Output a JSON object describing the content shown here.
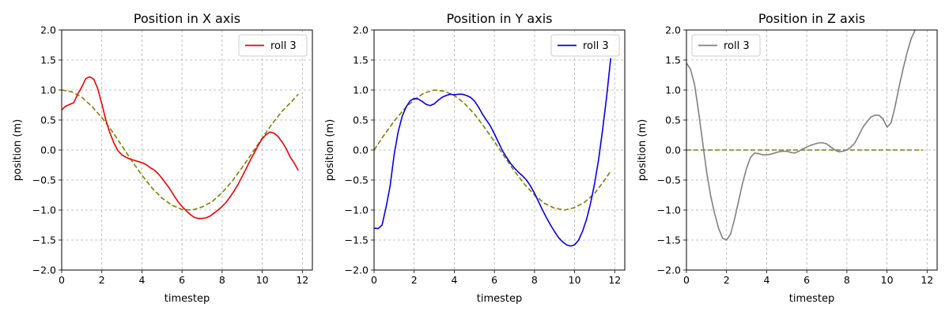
{
  "chart_data": [
    {
      "type": "line",
      "title": "Position in X axis",
      "xlabel": "timestep",
      "ylabel": "position (m)",
      "xlim": [
        0,
        12.5
      ],
      "ylim": [
        -2,
        2
      ],
      "xticks": [
        0,
        2,
        4,
        6,
        8,
        10,
        12
      ],
      "yticks": [
        -2.0,
        -1.5,
        -1.0,
        -0.5,
        0.0,
        0.5,
        1.0,
        1.5,
        2.0
      ],
      "grid": true,
      "legend_position": "upper right",
      "series": [
        {
          "name": "roll 3",
          "color": "#ee0000",
          "style": "solid",
          "x": [
            0,
            0.2,
            0.4,
            0.6,
            0.8,
            1.0,
            1.2,
            1.4,
            1.6,
            1.8,
            2.0,
            2.2,
            2.4,
            2.6,
            2.8,
            3.0,
            3.2,
            3.4,
            3.6,
            3.8,
            4.0,
            4.2,
            4.4,
            4.6,
            4.8,
            5.0,
            5.2,
            5.4,
            5.6,
            5.8,
            6.0,
            6.2,
            6.4,
            6.6,
            6.8,
            7.0,
            7.2,
            7.4,
            7.6,
            7.8,
            8.0,
            8.2,
            8.4,
            8.6,
            8.8,
            9.0,
            9.2,
            9.4,
            9.6,
            9.8,
            10.0,
            10.2,
            10.4,
            10.6,
            10.8,
            11.0,
            11.2,
            11.4,
            11.6,
            11.8
          ],
          "y": [
            0.67,
            0.73,
            0.76,
            0.79,
            0.93,
            1.05,
            1.19,
            1.22,
            1.18,
            1.02,
            0.77,
            0.5,
            0.29,
            0.12,
            -0.01,
            -0.08,
            -0.12,
            -0.15,
            -0.17,
            -0.19,
            -0.21,
            -0.24,
            -0.29,
            -0.33,
            -0.39,
            -0.47,
            -0.56,
            -0.65,
            -0.76,
            -0.86,
            -0.94,
            -1.01,
            -1.07,
            -1.12,
            -1.14,
            -1.14,
            -1.13,
            -1.1,
            -1.05,
            -1.0,
            -0.94,
            -0.87,
            -0.78,
            -0.68,
            -0.57,
            -0.44,
            -0.31,
            -0.17,
            -0.05,
            0.08,
            0.19,
            0.26,
            0.3,
            0.28,
            0.22,
            0.13,
            0.02,
            -0.12,
            -0.22,
            -0.34
          ]
        },
        {
          "name": "",
          "color": "#808000",
          "style": "dashed",
          "x": [
            0,
            0.5,
            1.0,
            1.5,
            2.0,
            2.5,
            3.0,
            3.5,
            4.0,
            4.5,
            5.0,
            5.5,
            6.0,
            6.5,
            7.0,
            7.5,
            8.0,
            8.5,
            9.0,
            9.5,
            10.0,
            10.5,
            11.0,
            11.5,
            11.8
          ],
          "y": [
            1.0,
            0.97,
            0.88,
            0.73,
            0.54,
            0.32,
            0.07,
            -0.18,
            -0.42,
            -0.63,
            -0.8,
            -0.92,
            -0.99,
            -1.0,
            -0.95,
            -0.86,
            -0.71,
            -0.52,
            -0.29,
            -0.05,
            0.2,
            0.44,
            0.65,
            0.82,
            0.93
          ]
        }
      ]
    },
    {
      "type": "line",
      "title": "Position in Y axis",
      "xlabel": "timestep",
      "ylabel": "position (m)",
      "xlim": [
        0,
        12.5
      ],
      "ylim": [
        -2,
        2
      ],
      "xticks": [
        0,
        2,
        4,
        6,
        8,
        10,
        12
      ],
      "yticks": [
        -2.0,
        -1.5,
        -1.0,
        -0.5,
        0.0,
        0.5,
        1.0,
        1.5,
        2.0
      ],
      "grid": true,
      "legend_position": "upper right",
      "series": [
        {
          "name": "roll 3",
          "color": "#0000ee",
          "style": "solid",
          "x": [
            0,
            0.2,
            0.4,
            0.6,
            0.8,
            1.0,
            1.2,
            1.4,
            1.6,
            1.8,
            2.0,
            2.2,
            2.4,
            2.6,
            2.8,
            3.0,
            3.2,
            3.4,
            3.6,
            3.8,
            4.0,
            4.2,
            4.4,
            4.6,
            4.8,
            5.0,
            5.2,
            5.4,
            5.6,
            5.8,
            6.0,
            6.2,
            6.4,
            6.6,
            6.8,
            7.0,
            7.2,
            7.4,
            7.6,
            7.8,
            8.0,
            8.2,
            8.4,
            8.6,
            8.8,
            9.0,
            9.2,
            9.4,
            9.6,
            9.8,
            10.0,
            10.2,
            10.4,
            10.6,
            10.8,
            11.0,
            11.2,
            11.4,
            11.6,
            11.8
          ],
          "y": [
            -1.3,
            -1.31,
            -1.25,
            -0.95,
            -0.6,
            -0.08,
            0.3,
            0.56,
            0.72,
            0.82,
            0.86,
            0.85,
            0.81,
            0.76,
            0.74,
            0.77,
            0.83,
            0.88,
            0.91,
            0.93,
            0.92,
            0.93,
            0.93,
            0.91,
            0.88,
            0.82,
            0.72,
            0.6,
            0.5,
            0.4,
            0.27,
            0.13,
            -0.01,
            -0.12,
            -0.22,
            -0.3,
            -0.37,
            -0.43,
            -0.5,
            -0.6,
            -0.72,
            -0.86,
            -1.0,
            -1.13,
            -1.25,
            -1.36,
            -1.46,
            -1.53,
            -1.58,
            -1.6,
            -1.58,
            -1.5,
            -1.35,
            -1.15,
            -0.88,
            -0.55,
            -0.15,
            0.35,
            0.9,
            1.53
          ]
        },
        {
          "name": "",
          "color": "#808000",
          "style": "dashed",
          "x": [
            0,
            0.5,
            1.0,
            1.5,
            2.0,
            2.5,
            3.0,
            3.5,
            4.0,
            4.5,
            5.0,
            5.5,
            6.0,
            6.5,
            7.0,
            7.5,
            8.0,
            8.5,
            9.0,
            9.5,
            10.0,
            10.5,
            11.0,
            11.5,
            11.8
          ],
          "y": [
            0.0,
            0.25,
            0.48,
            0.68,
            0.84,
            0.95,
            1.0,
            0.98,
            0.91,
            0.78,
            0.6,
            0.38,
            0.14,
            -0.11,
            -0.35,
            -0.57,
            -0.75,
            -0.89,
            -0.97,
            -1.0,
            -0.96,
            -0.87,
            -0.72,
            -0.5,
            -0.35
          ]
        }
      ]
    },
    {
      "type": "line",
      "title": "Position in Z axis",
      "xlabel": "timestep",
      "ylabel": "position (m)",
      "xlim": [
        0,
        12.5
      ],
      "ylim": [
        -2,
        2
      ],
      "xticks": [
        0,
        2,
        4,
        6,
        8,
        10,
        12
      ],
      "yticks": [
        -2.0,
        -1.5,
        -1.0,
        -0.5,
        0.0,
        0.5,
        1.0,
        1.5,
        2.0
      ],
      "grid": true,
      "legend_position": "upper left",
      "series": [
        {
          "name": "roll 3",
          "color": "#808080",
          "style": "solid",
          "x": [
            0,
            0.2,
            0.4,
            0.6,
            0.8,
            1.0,
            1.2,
            1.4,
            1.6,
            1.8,
            2.0,
            2.2,
            2.4,
            2.6,
            2.8,
            3.0,
            3.2,
            3.4,
            3.6,
            3.8,
            4.0,
            4.2,
            4.4,
            4.6,
            4.8,
            5.0,
            5.2,
            5.4,
            5.6,
            5.8,
            6.0,
            6.2,
            6.4,
            6.6,
            6.8,
            7.0,
            7.2,
            7.4,
            7.6,
            7.8,
            8.0,
            8.2,
            8.4,
            8.6,
            8.8,
            9.0,
            9.2,
            9.4,
            9.6,
            9.8,
            10.0,
            10.2,
            10.4,
            10.6,
            10.8,
            11.0,
            11.2,
            11.4,
            11.6,
            11.8
          ],
          "y": [
            1.45,
            1.35,
            1.1,
            0.65,
            0.15,
            -0.35,
            -0.75,
            -1.05,
            -1.3,
            -1.47,
            -1.5,
            -1.4,
            -1.15,
            -0.85,
            -0.55,
            -0.3,
            -0.12,
            -0.05,
            -0.06,
            -0.08,
            -0.08,
            -0.07,
            -0.05,
            -0.03,
            -0.02,
            -0.02,
            -0.04,
            -0.05,
            -0.02,
            0.02,
            0.05,
            0.08,
            0.1,
            0.12,
            0.12,
            0.1,
            0.05,
            0.0,
            -0.03,
            -0.02,
            0.0,
            0.05,
            0.12,
            0.25,
            0.38,
            0.47,
            0.55,
            0.58,
            0.58,
            0.52,
            0.38,
            0.45,
            0.72,
            1.05,
            1.35,
            1.62,
            1.85,
            2.0,
            2.08,
            2.12
          ]
        },
        {
          "name": "",
          "color": "#808000",
          "style": "dashed",
          "x": [
            0,
            11.8
          ],
          "y": [
            0.0,
            0.0
          ]
        }
      ]
    }
  ]
}
